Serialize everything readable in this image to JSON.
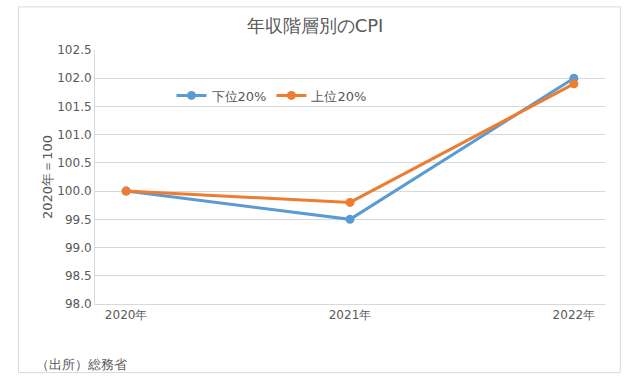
{
  "chart_data": {
    "type": "line",
    "title": "年収階層別のCPI",
    "y_label": "2020年＝100",
    "categories": [
      "2020年",
      "2021年",
      "2022年"
    ],
    "series": [
      {
        "name": "下位20%",
        "color": "#5b9bd5",
        "values": [
          100.0,
          99.5,
          102.0
        ]
      },
      {
        "name": "上位20%",
        "color": "#ed7d31",
        "values": [
          100.0,
          99.8,
          101.9
        ]
      }
    ],
    "ylim": [
      98.0,
      102.5
    ],
    "yticks": [
      {
        "value": 98.0,
        "label": "98.0"
      },
      {
        "value": 98.5,
        "label": "98.5"
      },
      {
        "value": 99.0,
        "label": "99.0"
      },
      {
        "value": 99.5,
        "label": "99.5"
      },
      {
        "value": 100.0,
        "label": "100.0"
      },
      {
        "value": 100.5,
        "label": "100.5"
      },
      {
        "value": 101.0,
        "label": "101.0"
      },
      {
        "value": 101.5,
        "label": "101.5"
      },
      {
        "value": 102.0,
        "label": "102.0"
      },
      {
        "value": 102.5,
        "label": "102.5"
      }
    ],
    "grid": true,
    "legend": "upper left",
    "marker": "circle",
    "annotations": [
      "（出所）総務省"
    ]
  }
}
